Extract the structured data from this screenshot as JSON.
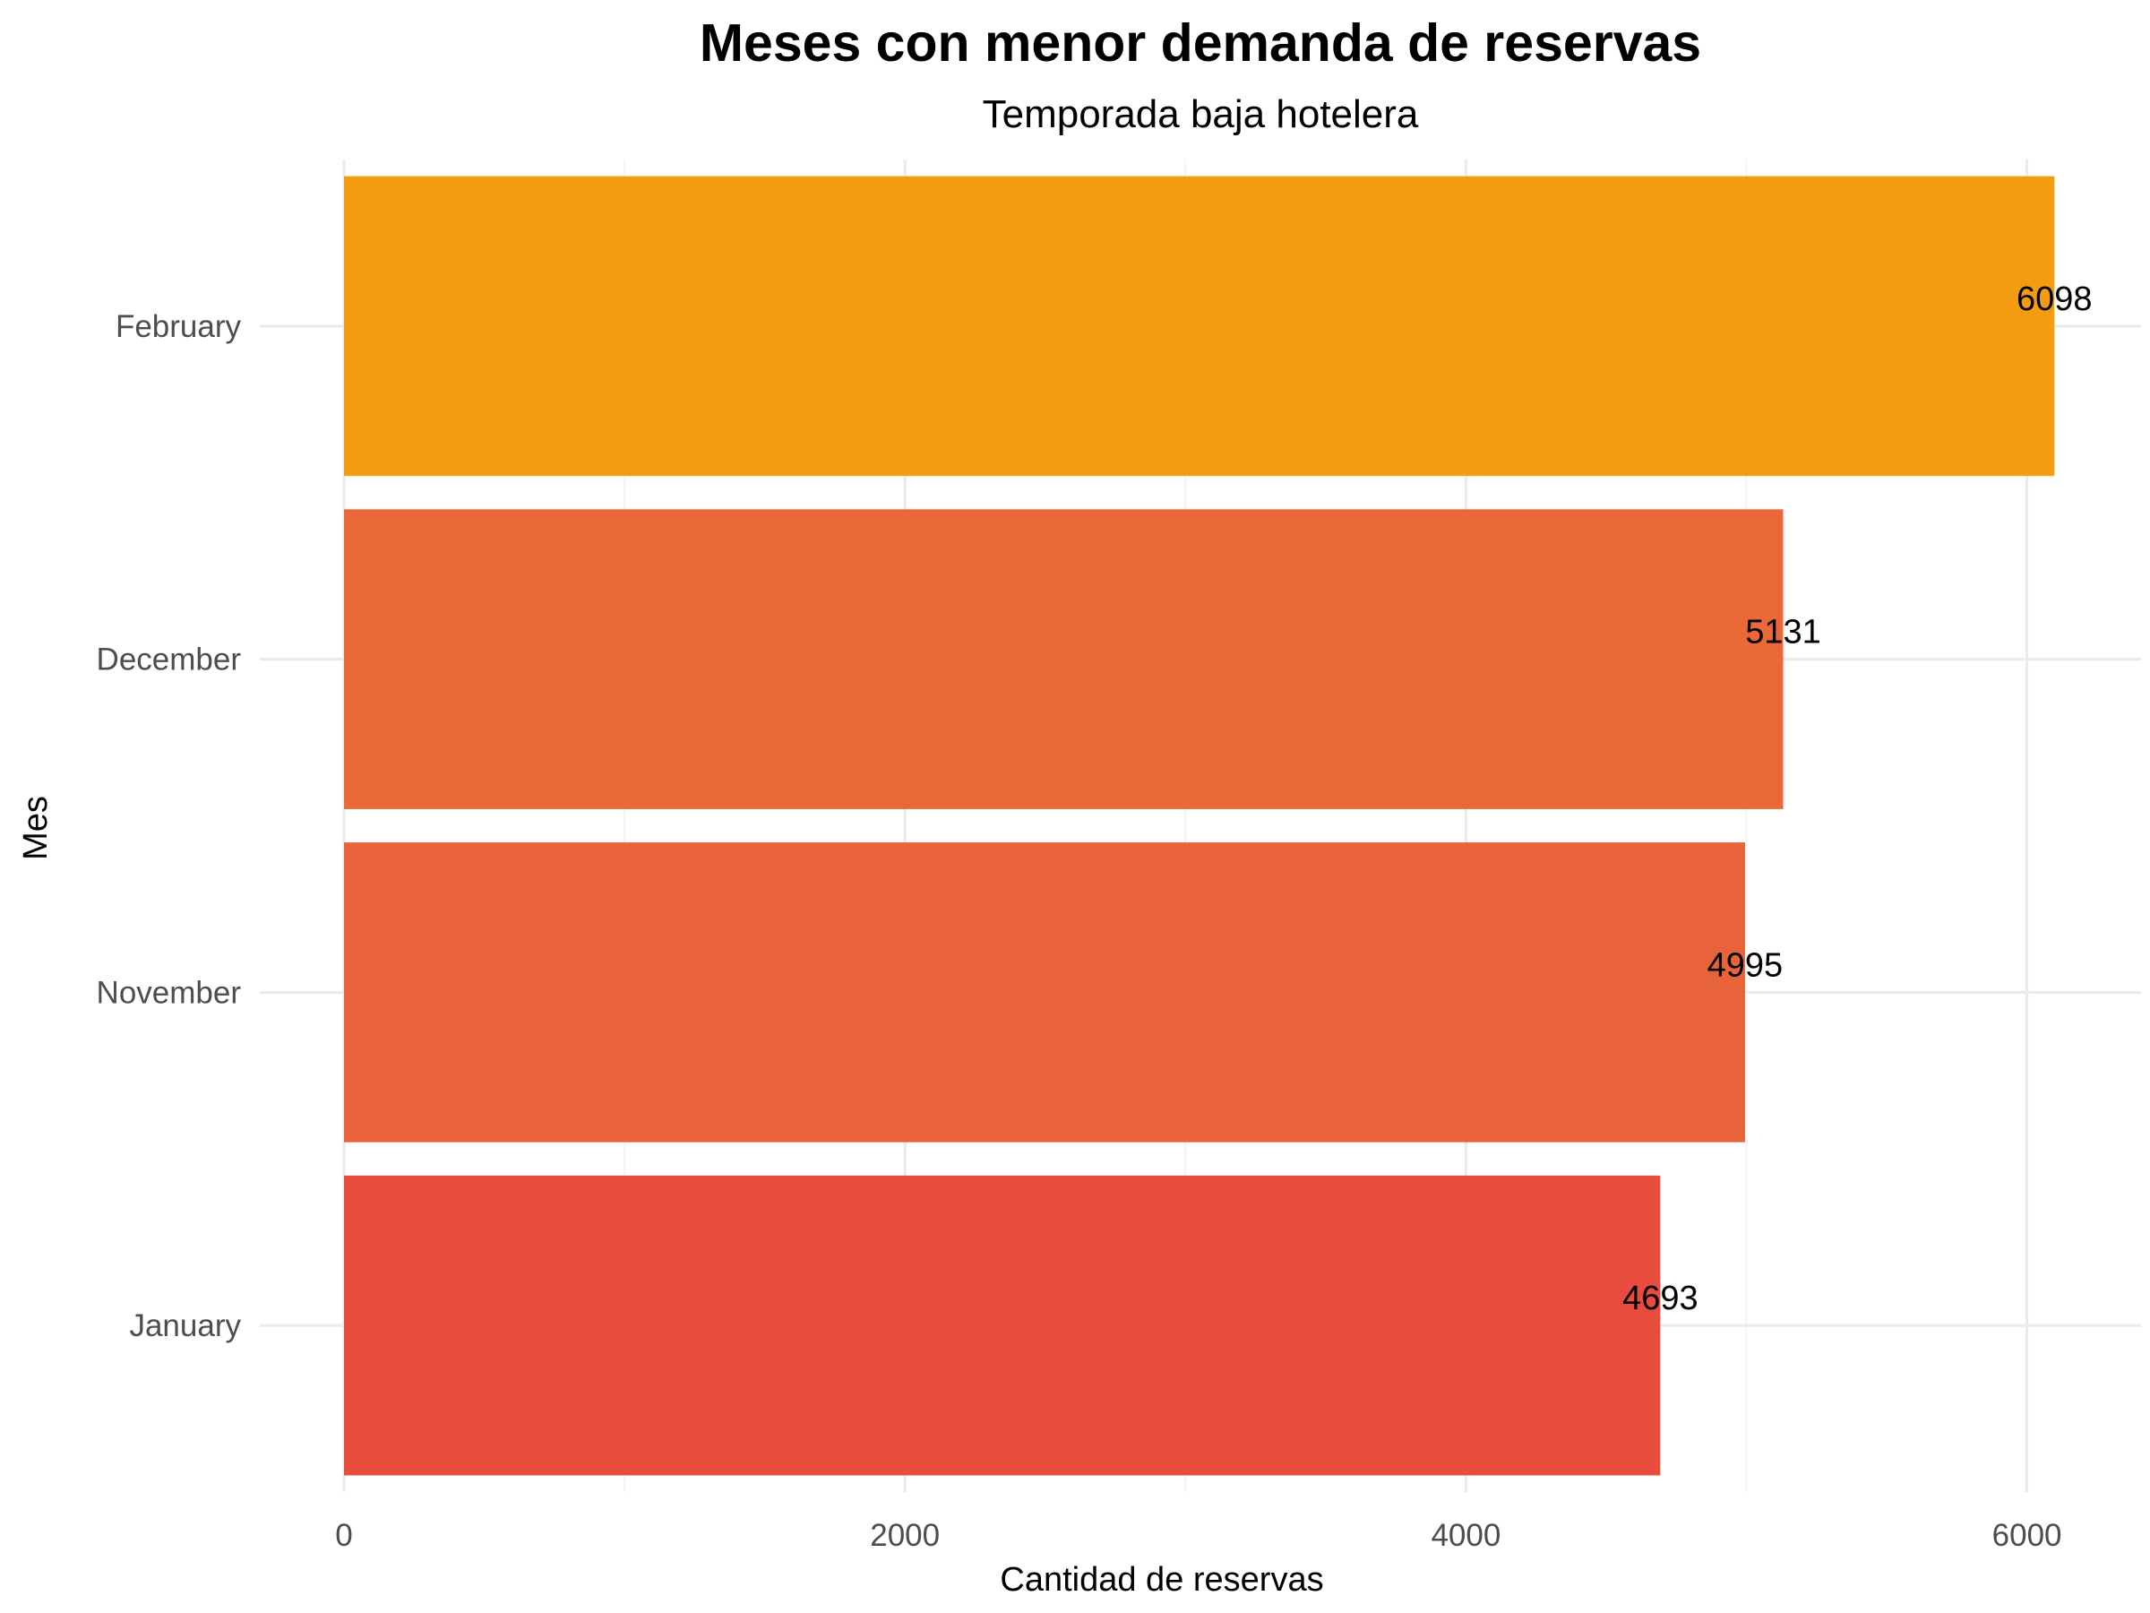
{
  "chart_data": {
    "type": "bar",
    "orientation": "horizontal",
    "title": "Meses con menor demanda de reservas",
    "subtitle": "Temporada baja hotelera",
    "xlabel": "Cantidad de reservas",
    "ylabel": "Mes",
    "categories": [
      "January",
      "November",
      "December",
      "February"
    ],
    "values": [
      4693,
      4995,
      5131,
      6098
    ],
    "colors": [
      "#E74C3C",
      "#E8633A",
      "#EB6838",
      "#F39C12"
    ],
    "xlim": [
      0,
      6400
    ],
    "x_ticks": [
      0,
      2000,
      4000,
      6000
    ],
    "x_tick_labels": [
      "0",
      "2000",
      "4000",
      "6000"
    ],
    "data_labels": [
      "4693",
      "4995",
      "5131",
      "6098"
    ],
    "grid": true,
    "legend": "none"
  }
}
